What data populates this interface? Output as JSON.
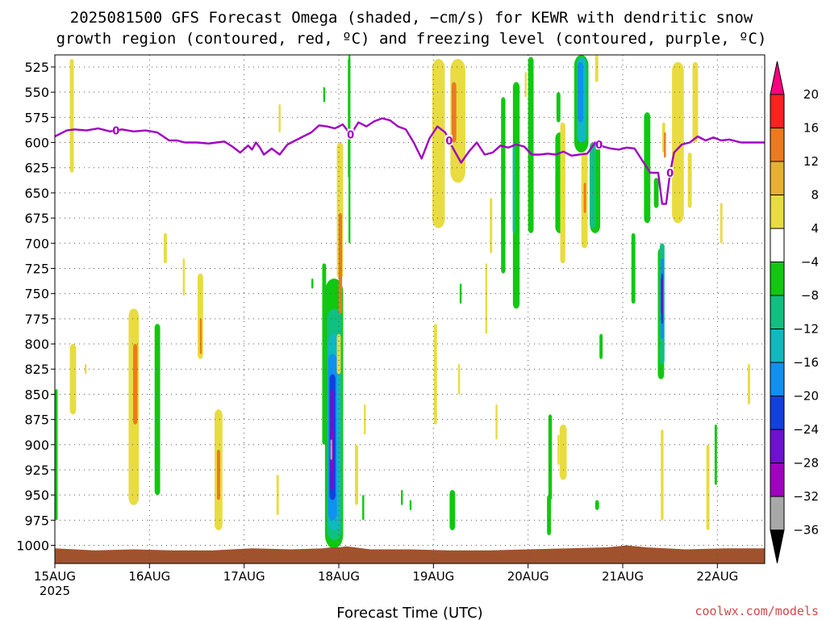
{
  "chart_data": {
    "type": "heatmap",
    "title_lines": [
      "2025081500 GFS Forecast Omega (shaded, −cm/s) for KEWR with dendritic snow",
      "growth region (contoured, red, ºC) and freezing level (contoured, purple, ºC)"
    ],
    "xlabel": "Forecast Time (UTC)",
    "credit": "coolwx.com/models",
    "x_ticks": [
      {
        "t": 0,
        "label": "15AUG",
        "sub": "2025"
      },
      {
        "t": 24,
        "label": "16AUG",
        "sub": ""
      },
      {
        "t": 48,
        "label": "17AUG",
        "sub": ""
      },
      {
        "t": 72,
        "label": "18AUG",
        "sub": ""
      },
      {
        "t": 96,
        "label": "19AUG",
        "sub": ""
      },
      {
        "t": 120,
        "label": "20AUG",
        "sub": ""
      },
      {
        "t": 144,
        "label": "21AUG",
        "sub": ""
      },
      {
        "t": 168,
        "label": "22AUG",
        "sub": ""
      }
    ],
    "xlim": [
      0,
      180
    ],
    "y_ticks": [
      525,
      550,
      575,
      600,
      625,
      650,
      675,
      700,
      725,
      750,
      775,
      800,
      825,
      850,
      875,
      900,
      925,
      950,
      975,
      1000
    ],
    "ylim": [
      513,
      1018
    ],
    "grid": true,
    "colorbar": {
      "labels": [
        "20",
        "16",
        "12",
        "8",
        "4",
        "−4",
        "−8",
        "−12",
        "−16",
        "−20",
        "−24",
        "−28",
        "−32",
        "−36"
      ],
      "colors": [
        "#ff0080",
        "#ff2020",
        "#ec7a1e",
        "#e8b030",
        "#e8dc40",
        "#ffffff",
        "#10c810",
        "#10c080",
        "#10b8c0",
        "#1090f0",
        "#1040e0",
        "#7010d0",
        "#a000c0",
        "#a8a8a8",
        "#000000"
      ]
    },
    "freezing_level": {
      "color": "#a000c0",
      "label": "0",
      "label_hours": [
        15.5,
        75,
        100,
        138,
        156
      ],
      "t": [
        0,
        3,
        5,
        8,
        11,
        14,
        17,
        20,
        23,
        26,
        29,
        31,
        33,
        36,
        39,
        41,
        43,
        45,
        47,
        49,
        50,
        51,
        52,
        53,
        55,
        57,
        59,
        61,
        63,
        65,
        67,
        69,
        71,
        73,
        75,
        77,
        79,
        81,
        83,
        85,
        87,
        89,
        91,
        93,
        95,
        97,
        99,
        101,
        103,
        105,
        107,
        109,
        111,
        113,
        115,
        117,
        119,
        121,
        123,
        125,
        127,
        129,
        131,
        133,
        135,
        137,
        139,
        141,
        143,
        145,
        147,
        149,
        151,
        152,
        153,
        154,
        155,
        156,
        157,
        159,
        161,
        163,
        165,
        167,
        169,
        171,
        174,
        177,
        180
      ],
      "p": [
        594,
        588,
        587,
        588,
        586,
        589,
        587,
        589,
        588,
        590,
        598,
        598,
        600,
        600,
        601,
        600,
        599,
        604,
        610,
        603,
        607,
        600,
        605,
        612,
        606,
        612,
        602,
        598,
        594,
        590,
        583,
        584,
        586,
        582,
        592,
        580,
        584,
        579,
        576,
        578,
        584,
        587,
        600,
        616,
        596,
        584,
        590,
        606,
        620,
        609,
        600,
        612,
        610,
        603,
        605,
        602,
        604,
        612,
        612,
        611,
        612,
        609,
        613,
        612,
        611,
        600,
        604,
        606,
        607,
        605,
        606,
        618,
        630,
        630,
        630,
        661,
        661,
        630,
        610,
        602,
        600,
        594,
        598,
        595,
        598,
        597,
        600,
        600,
        600
      ]
    },
    "ground": {
      "color": "#a0522d",
      "t": [
        0,
        10,
        20,
        30,
        40,
        50,
        60,
        68,
        70,
        72,
        74,
        76,
        78,
        80,
        90,
        100,
        110,
        120,
        130,
        140,
        145,
        150,
        155,
        160,
        170,
        180
      ],
      "p": [
        1003,
        1005,
        1004,
        1005,
        1005,
        1003,
        1004,
        1003,
        1002,
        1002,
        1001,
        1002,
        1003,
        1004,
        1004,
        1005,
        1005,
        1004,
        1003,
        1002,
        1000,
        1002,
        1003,
        1004,
        1003,
        1003
      ]
    },
    "omega_regions": [
      {
        "t": 4.3,
        "p1": 517,
        "p2": 630,
        "w": 1.0,
        "c": "#e8dc40"
      },
      {
        "t": 4.6,
        "p1": 800,
        "p2": 870,
        "w": 1.6,
        "c": "#e8dc40"
      },
      {
        "t": 7.8,
        "p1": 820,
        "p2": 830,
        "w": 0.4,
        "c": "#e8dc40"
      },
      {
        "t": 0.4,
        "p1": 845,
        "p2": 975,
        "w": 0.6,
        "c": "#10c810"
      },
      {
        "t": 20.0,
        "p1": 765,
        "p2": 960,
        "w": 2.6,
        "c": "#e8dc40"
      },
      {
        "t": 20.4,
        "p1": 800,
        "p2": 880,
        "w": 1.1,
        "c": "#ec7a1e"
      },
      {
        "t": 26.0,
        "p1": 780,
        "p2": 950,
        "w": 1.4,
        "c": "#10c810"
      },
      {
        "t": 28.0,
        "p1": 690,
        "p2": 720,
        "w": 0.8,
        "c": "#e8dc40"
      },
      {
        "t": 32.7,
        "p1": 715,
        "p2": 752,
        "w": 0.5,
        "c": "#e8dc40"
      },
      {
        "t": 36.9,
        "p1": 730,
        "p2": 815,
        "w": 1.4,
        "c": "#e8dc40"
      },
      {
        "t": 37.0,
        "p1": 775,
        "p2": 810,
        "w": 0.4,
        "c": "#ec7a1e"
      },
      {
        "t": 41.5,
        "p1": 865,
        "p2": 985,
        "w": 2.0,
        "c": "#e8dc40"
      },
      {
        "t": 41.5,
        "p1": 905,
        "p2": 955,
        "w": 0.8,
        "c": "#ec7a1e"
      },
      {
        "t": 57.0,
        "p1": 562,
        "p2": 590,
        "w": 0.5,
        "c": "#e8dc40"
      },
      {
        "t": 56.5,
        "p1": 930,
        "p2": 970,
        "w": 0.6,
        "c": "#e8dc40"
      },
      {
        "t": 65.3,
        "p1": 735,
        "p2": 745,
        "w": 0.5,
        "c": "#10c810"
      },
      {
        "t": 68.3,
        "p1": 545,
        "p2": 560,
        "w": 0.5,
        "c": "#10c810"
      },
      {
        "t": 68.3,
        "p1": 720,
        "p2": 900,
        "w": 1.0,
        "c": "#10c810"
      },
      {
        "t": 70.2,
        "p1": 965,
        "p2": 990,
        "w": 0.5,
        "c": "#10c810"
      },
      {
        "t": 70.8,
        "p1": 735,
        "p2": 1003,
        "w": 4.6,
        "c": "#10c810"
      },
      {
        "t": 70.9,
        "p1": 765,
        "p2": 995,
        "w": 3.8,
        "c": "#10c080"
      },
      {
        "t": 70.8,
        "p1": 790,
        "p2": 985,
        "w": 3.0,
        "c": "#10b8c0"
      },
      {
        "t": 70.4,
        "p1": 810,
        "p2": 975,
        "w": 2.2,
        "c": "#1090f0"
      },
      {
        "t": 70.4,
        "p1": 830,
        "p2": 955,
        "w": 1.5,
        "c": "#1040e0"
      },
      {
        "t": 70.3,
        "p1": 845,
        "p2": 945,
        "w": 0.9,
        "c": "#7010d0"
      },
      {
        "t": 70.3,
        "p1": 885,
        "p2": 925,
        "w": 0.4,
        "c": "#a000c0"
      },
      {
        "t": 70.1,
        "p1": 895,
        "p2": 915,
        "w": 0.2,
        "c": "#a8a8a8"
      },
      {
        "t": 72.3,
        "p1": 600,
        "p2": 735,
        "w": 1.6,
        "c": "#e8dc40"
      },
      {
        "t": 72.4,
        "p1": 670,
        "p2": 770,
        "w": 0.9,
        "c": "#ec7a1e"
      },
      {
        "t": 72.0,
        "p1": 790,
        "p2": 830,
        "w": 1.0,
        "c": "#e8dc40"
      },
      {
        "t": 74.6,
        "p1": 517,
        "p2": 635,
        "w": 0.6,
        "c": "#10c810"
      },
      {
        "t": 74.7,
        "p1": 510,
        "p2": 700,
        "w": 0.25,
        "c": "#10c810"
      },
      {
        "t": 76.5,
        "p1": 900,
        "p2": 960,
        "w": 0.8,
        "c": "#e8dc40"
      },
      {
        "t": 78.6,
        "p1": 860,
        "p2": 890,
        "w": 0.4,
        "c": "#e8dc40"
      },
      {
        "t": 78.2,
        "p1": 950,
        "p2": 975,
        "w": 0.5,
        "c": "#10c810"
      },
      {
        "t": 88.0,
        "p1": 945,
        "p2": 960,
        "w": 0.4,
        "c": "#10c810"
      },
      {
        "t": 90.2,
        "p1": 955,
        "p2": 965,
        "w": 0.4,
        "c": "#10c810"
      },
      {
        "t": 97.3,
        "p1": 517,
        "p2": 685,
        "w": 3.2,
        "c": "#e8dc40"
      },
      {
        "t": 102.2,
        "p1": 517,
        "p2": 640,
        "w": 3.8,
        "c": "#e8dc40"
      },
      {
        "t": 101.2,
        "p1": 540,
        "p2": 600,
        "w": 1.2,
        "c": "#ec7a1e"
      },
      {
        "t": 96.5,
        "p1": 780,
        "p2": 880,
        "w": 0.8,
        "c": "#e8dc40"
      },
      {
        "t": 102.9,
        "p1": 740,
        "p2": 760,
        "w": 0.3,
        "c": "#10c810"
      },
      {
        "t": 102.5,
        "p1": 820,
        "p2": 850,
        "w": 0.3,
        "c": "#e8dc40"
      },
      {
        "t": 100.8,
        "p1": 945,
        "p2": 985,
        "w": 1.4,
        "c": "#10c810"
      },
      {
        "t": 109.4,
        "p1": 720,
        "p2": 790,
        "w": 0.5,
        "c": "#e8dc40"
      },
      {
        "t": 110.6,
        "p1": 655,
        "p2": 710,
        "w": 0.6,
        "c": "#e8dc40"
      },
      {
        "t": 112.0,
        "p1": 860,
        "p2": 895,
        "w": 0.3,
        "c": "#e8dc40"
      },
      {
        "t": 113.7,
        "p1": 555,
        "p2": 730,
        "w": 1.1,
        "c": "#10c810"
      },
      {
        "t": 117.0,
        "p1": 540,
        "p2": 765,
        "w": 1.7,
        "c": "#10c810"
      },
      {
        "t": 116.5,
        "p1": 600,
        "p2": 690,
        "w": 0.8,
        "c": "#10c080"
      },
      {
        "t": 120.7,
        "p1": 515,
        "p2": 690,
        "w": 1.4,
        "c": "#10c810"
      },
      {
        "t": 119.4,
        "p1": 530,
        "p2": 555,
        "w": 0.4,
        "c": "#e8dc40"
      },
      {
        "t": 127.7,
        "p1": 550,
        "p2": 580,
        "w": 1.0,
        "c": "#10c810"
      },
      {
        "t": 128.0,
        "p1": 590,
        "p2": 690,
        "w": 2.2,
        "c": "#10c810"
      },
      {
        "t": 128.8,
        "p1": 580,
        "p2": 720,
        "w": 1.3,
        "c": "#e8dc40"
      },
      {
        "t": 133.5,
        "p1": 510,
        "p2": 610,
        "w": 3.6,
        "c": "#10c810"
      },
      {
        "t": 133.6,
        "p1": 515,
        "p2": 600,
        "w": 2.4,
        "c": "#10b8c0"
      },
      {
        "t": 133.3,
        "p1": 520,
        "p2": 580,
        "w": 1.4,
        "c": "#1090f0"
      },
      {
        "t": 137.0,
        "p1": 600,
        "p2": 690,
        "w": 2.6,
        "c": "#10c810"
      },
      {
        "t": 136.4,
        "p1": 600,
        "p2": 685,
        "w": 1.6,
        "c": "#10c080"
      },
      {
        "t": 134.3,
        "p1": 610,
        "p2": 705,
        "w": 1.6,
        "c": "#e8dc40"
      },
      {
        "t": 134.4,
        "p1": 640,
        "p2": 670,
        "w": 0.6,
        "c": "#ec7a1e"
      },
      {
        "t": 137.4,
        "p1": 510,
        "p2": 540,
        "w": 0.8,
        "c": "#e8dc40"
      },
      {
        "t": 128.9,
        "p1": 880,
        "p2": 935,
        "w": 1.8,
        "c": "#e8dc40"
      },
      {
        "t": 125.6,
        "p1": 870,
        "p2": 955,
        "w": 0.9,
        "c": "#10c810"
      },
      {
        "t": 127.7,
        "p1": 890,
        "p2": 920,
        "w": 0.5,
        "c": "#e8dc40"
      },
      {
        "t": 125.3,
        "p1": 950,
        "p2": 990,
        "w": 1.0,
        "c": "#10c810"
      },
      {
        "t": 137.5,
        "p1": 955,
        "p2": 965,
        "w": 1.0,
        "c": "#10c810"
      },
      {
        "t": 138.5,
        "p1": 790,
        "p2": 815,
        "w": 0.8,
        "c": "#10c810"
      },
      {
        "t": 146.7,
        "p1": 690,
        "p2": 760,
        "w": 1.0,
        "c": "#10c810"
      },
      {
        "t": 150.2,
        "p1": 570,
        "p2": 680,
        "w": 1.6,
        "c": "#10c810"
      },
      {
        "t": 153.7,
        "p1": 705,
        "p2": 835,
        "w": 1.6,
        "c": "#10c810"
      },
      {
        "t": 154.0,
        "p1": 700,
        "p2": 820,
        "w": 1.2,
        "c": "#10c080"
      },
      {
        "t": 154.0,
        "p1": 715,
        "p2": 795,
        "w": 0.8,
        "c": "#1090f0"
      },
      {
        "t": 154.0,
        "p1": 730,
        "p2": 780,
        "w": 0.5,
        "c": "#1040e0"
      },
      {
        "t": 153.9,
        "p1": 735,
        "p2": 770,
        "w": 0.3,
        "c": "#7010d0"
      },
      {
        "t": 152.5,
        "p1": 635,
        "p2": 665,
        "w": 1.2,
        "c": "#10c810"
      },
      {
        "t": 154.4,
        "p1": 580,
        "p2": 610,
        "w": 0.8,
        "c": "#e8dc40"
      },
      {
        "t": 154.7,
        "p1": 590,
        "p2": 615,
        "w": 0.4,
        "c": "#ec7a1e"
      },
      {
        "t": 154.0,
        "p1": 885,
        "p2": 975,
        "w": 0.7,
        "c": "#e8dc40"
      },
      {
        "t": 158.0,
        "p1": 520,
        "p2": 680,
        "w": 3.0,
        "c": "#e8dc40"
      },
      {
        "t": 162.4,
        "p1": 520,
        "p2": 600,
        "w": 1.4,
        "c": "#e8dc40"
      },
      {
        "t": 161.0,
        "p1": 610,
        "p2": 665,
        "w": 1.0,
        "c": "#e8dc40"
      },
      {
        "t": 165.6,
        "p1": 900,
        "p2": 985,
        "w": 0.8,
        "c": "#e8dc40"
      },
      {
        "t": 167.6,
        "p1": 880,
        "p2": 940,
        "w": 0.6,
        "c": "#10c810"
      },
      {
        "t": 169.0,
        "p1": 660,
        "p2": 700,
        "w": 0.6,
        "c": "#e8dc40"
      },
      {
        "t": 176.0,
        "p1": 820,
        "p2": 860,
        "w": 0.6,
        "c": "#e8dc40"
      }
    ]
  }
}
